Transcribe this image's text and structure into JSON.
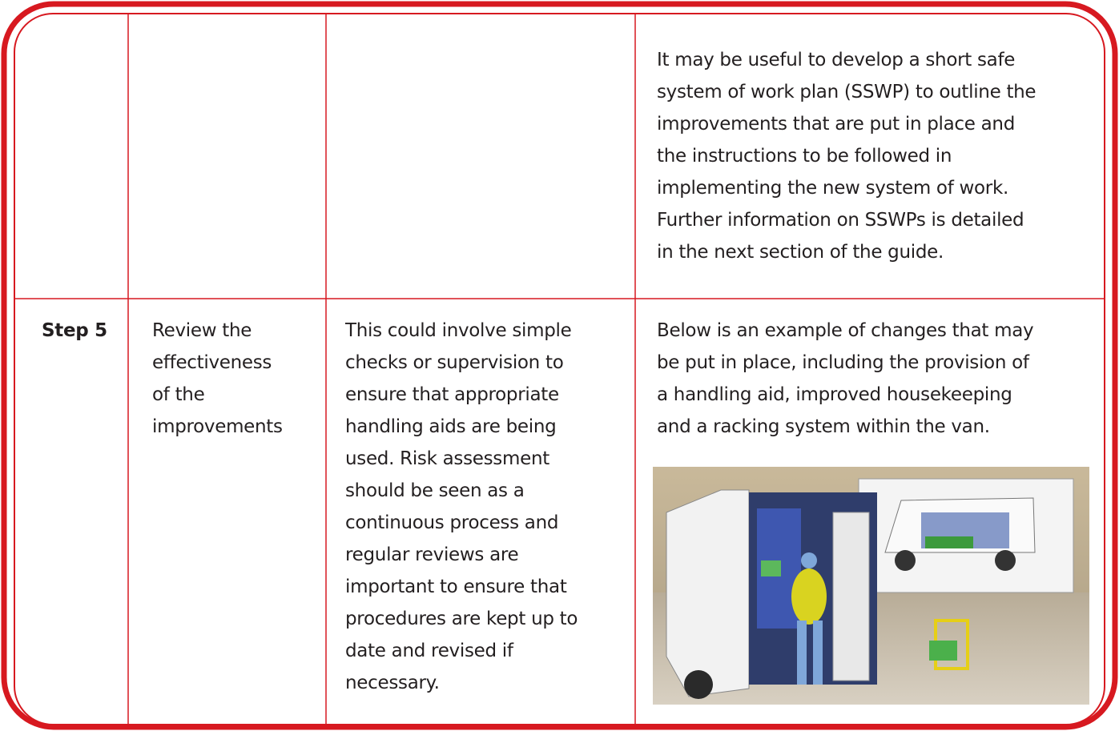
{
  "table": {
    "rows": [
      {
        "notes": [
          "It may be useful to develop a short safe",
          "system of work plan (SSWP) to outline the",
          "improvements that are put in place and",
          "the instructions to be followed in",
          "implementing the new system of work.",
          "Further information on SSWPs is detailed",
          "in the next section of the guide."
        ]
      },
      {
        "step": "Step 5",
        "action": [
          "Review the",
          "effectiveness",
          "of the",
          "improvements"
        ],
        "detail": [
          "This could involve simple",
          "checks or supervision to",
          "ensure that appropriate",
          "handling aids are being",
          "used. Risk assessment",
          "should be seen as a",
          "continuous process and",
          "regular reviews are",
          "important to ensure that",
          "procedures are kept up to",
          "date and revised if",
          "necessary."
        ],
        "notes": [
          "Below is an example of changes that may",
          "be put in place, including the provision of",
          "a handling aid, improved housekeeping",
          "and a racking system within the van."
        ]
      }
    ]
  }
}
